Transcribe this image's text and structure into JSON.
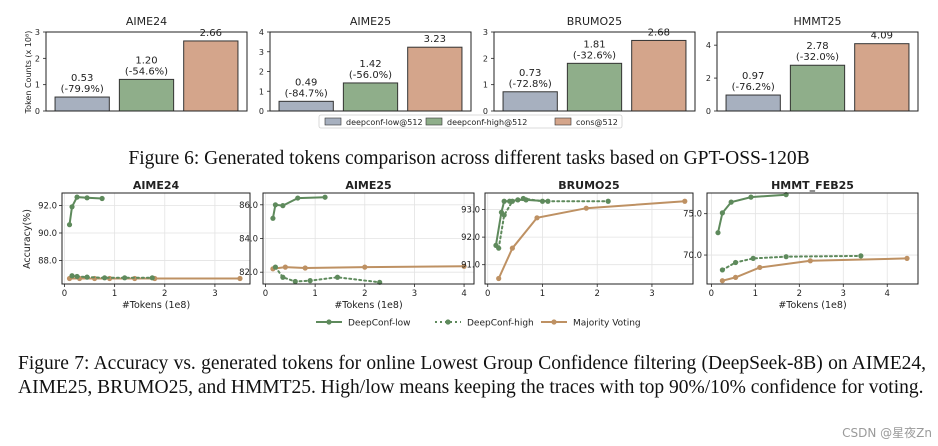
{
  "chart_data": [
    {
      "type": "bar",
      "title": "AIME24",
      "ylabel": "Token Counts (x 10⁸)",
      "ylim": [
        0,
        3
      ],
      "yticks": [
        "0",
        "1",
        "2",
        "3"
      ],
      "categories": [
        "deepconf-low@512",
        "deepconf-high@512",
        "cons@512"
      ],
      "values": [
        0.53,
        1.2,
        2.66
      ],
      "labels": [
        "0.53",
        "1.20",
        "2.66"
      ],
      "deltas": [
        "(-79.9%)",
        "(-54.6%)",
        ""
      ]
    },
    {
      "type": "bar",
      "title": "AIME25",
      "ylim": [
        0,
        4
      ],
      "yticks": [
        "0",
        "1",
        "2",
        "3",
        "4"
      ],
      "categories": [
        "deepconf-low@512",
        "deepconf-high@512",
        "cons@512"
      ],
      "values": [
        0.49,
        1.42,
        3.23
      ],
      "labels": [
        "0.49",
        "1.42",
        "3.23"
      ],
      "deltas": [
        "(-84.7%)",
        "(-56.0%)",
        ""
      ]
    },
    {
      "type": "bar",
      "title": "BRUMO25",
      "ylim": [
        0,
        3
      ],
      "yticks": [
        "0",
        "1",
        "2",
        "3"
      ],
      "categories": [
        "deepconf-low@512",
        "deepconf-high@512",
        "cons@512"
      ],
      "values": [
        0.73,
        1.81,
        2.68
      ],
      "labels": [
        "0.73",
        "1.81",
        "2.68"
      ],
      "deltas": [
        "(-72.8%)",
        "(-32.6%)",
        ""
      ]
    },
    {
      "type": "bar",
      "title": "HMMT25",
      "ylim": [
        0,
        4.8
      ],
      "yticks": [
        "0",
        "2",
        "4"
      ],
      "categories": [
        "deepconf-low@512",
        "deepconf-high@512",
        "cons@512"
      ],
      "values": [
        0.97,
        2.78,
        4.09
      ],
      "labels": [
        "0.97",
        "2.78",
        "4.09"
      ],
      "deltas": [
        "(-76.2%)",
        "(-32.0%)",
        ""
      ]
    },
    {
      "type": "line",
      "title": "AIME24",
      "xlabel": "#Tokens (1e8)",
      "ylabel": "Accuracy(%)",
      "xlim": [
        -0.05,
        3.7
      ],
      "ylim": [
        86.3,
        92.9
      ],
      "xticks": [
        0,
        1,
        2,
        3
      ],
      "yticks": [
        88.0,
        90.0,
        92.0
      ],
      "ytick_labels": [
        "88.0",
        "90.0",
        "92.0"
      ],
      "series": [
        {
          "name": "DeepConf-low",
          "x": [
            0.1,
            0.15,
            0.25,
            0.45,
            0.75
          ],
          "y": [
            90.6,
            91.9,
            92.6,
            92.55,
            92.5
          ]
        },
        {
          "name": "DeepConf-high",
          "x": [
            0.15,
            0.25,
            0.45,
            0.8,
            1.2,
            1.75
          ],
          "y": [
            86.9,
            86.85,
            86.8,
            86.75,
            86.75,
            86.75
          ]
        },
        {
          "name": "Majority Voting",
          "x": [
            0.1,
            0.3,
            0.6,
            0.9,
            1.4,
            1.8,
            3.5
          ],
          "y": [
            86.7,
            86.7,
            86.7,
            86.7,
            86.7,
            86.7,
            86.7
          ]
        }
      ]
    },
    {
      "type": "line",
      "title": "AIME25",
      "xlabel": "#Tokens (1e8)",
      "xlim": [
        -0.05,
        4.2
      ],
      "ylim": [
        81.3,
        86.7
      ],
      "xticks": [
        0,
        1,
        2,
        3,
        4
      ],
      "yticks": [
        82.0,
        84.0,
        86.0
      ],
      "ytick_labels": [
        "82.0",
        "84.0",
        "86.0"
      ],
      "series": [
        {
          "name": "DeepConf-low",
          "x": [
            0.15,
            0.2,
            0.35,
            0.65,
            1.2
          ],
          "y": [
            85.2,
            86.0,
            85.95,
            86.4,
            86.45
          ]
        },
        {
          "name": "DeepConf-high",
          "x": [
            0.2,
            0.35,
            0.6,
            0.9,
            1.45,
            2.3
          ],
          "y": [
            82.3,
            81.7,
            81.45,
            81.5,
            81.7,
            81.4
          ]
        },
        {
          "name": "Majority Voting",
          "x": [
            0.15,
            0.4,
            0.8,
            2.0,
            4.0
          ],
          "y": [
            82.2,
            82.3,
            82.25,
            82.3,
            82.35
          ]
        }
      ]
    },
    {
      "type": "line",
      "title": "BRUMO25",
      "xlim": [
        -0.05,
        3.75
      ],
      "ylim": [
        90.3,
        93.6
      ],
      "xticks": [
        0,
        1,
        2,
        3
      ],
      "yticks": [
        91.0,
        92.0,
        93.0
      ],
      "ytick_labels": [
        "91.0",
        "92.0",
        "93.0"
      ],
      "series": [
        {
          "name": "DeepConf-low",
          "x": [
            0.15,
            0.25,
            0.3,
            0.4,
            0.55,
            0.7,
            1.1
          ],
          "y": [
            91.7,
            92.9,
            93.3,
            93.3,
            93.35,
            93.35,
            93.3
          ]
        },
        {
          "name": "DeepConf-high",
          "x": [
            0.2,
            0.3,
            0.45,
            0.65,
            1.0,
            2.2
          ],
          "y": [
            91.6,
            92.8,
            93.3,
            93.4,
            93.3,
            93.3
          ]
        },
        {
          "name": "Majority Voting",
          "x": [
            0.2,
            0.45,
            0.9,
            1.8,
            3.6
          ],
          "y": [
            90.5,
            91.6,
            92.7,
            93.05,
            93.3
          ]
        }
      ]
    },
    {
      "type": "line",
      "title": "HMMT_FEB25",
      "xlabel": "#Tokens (1e8)",
      "xlim": [
        -0.1,
        4.7
      ],
      "ylim": [
        66.5,
        77.5
      ],
      "xticks": [
        0,
        1,
        2,
        3,
        4
      ],
      "yticks": [
        70.0,
        75.0
      ],
      "ytick_labels": [
        "70.0",
        "75.0"
      ],
      "series": [
        {
          "name": "DeepConf-low",
          "x": [
            0.15,
            0.25,
            0.45,
            0.9,
            1.7
          ],
          "y": [
            72.7,
            75.1,
            76.4,
            77.0,
            77.3
          ]
        },
        {
          "name": "DeepConf-high",
          "x": [
            0.25,
            0.55,
            0.95,
            1.7,
            3.4
          ],
          "y": [
            68.2,
            69.1,
            69.6,
            69.8,
            69.9
          ]
        },
        {
          "name": "Majority Voting",
          "x": [
            0.25,
            0.55,
            1.1,
            2.25,
            4.45
          ],
          "y": [
            66.9,
            67.3,
            68.5,
            69.3,
            69.6
          ]
        }
      ]
    }
  ],
  "bar_legend": {
    "items": [
      "deepconf-low@512",
      "deepconf-high@512",
      "cons@512"
    ],
    "colors": [
      "#a7b0bf",
      "#8fae8a",
      "#d4a58b"
    ]
  },
  "line_legend": {
    "items": [
      "DeepConf-low",
      "DeepConf-high",
      "Majority Voting"
    ],
    "colors": [
      "#5e8a5c",
      "#5e8a5c",
      "#be9163"
    ],
    "styles": [
      "solid",
      "dotted",
      "solid"
    ]
  },
  "captions": {
    "fig6": "Figure 6: Generated tokens comparison across different tasks based on GPT-OSS-120B",
    "fig7": "Figure 7: Accuracy vs. generated tokens for online Lowest Group Confidence filtering (DeepSeek-8B) on AIME24, AIME25, BRUMO25, and HMMT25. High/low means keeping the traces with top 90%/10% confidence for voting."
  },
  "watermark": "CSDN @星夜Zn"
}
